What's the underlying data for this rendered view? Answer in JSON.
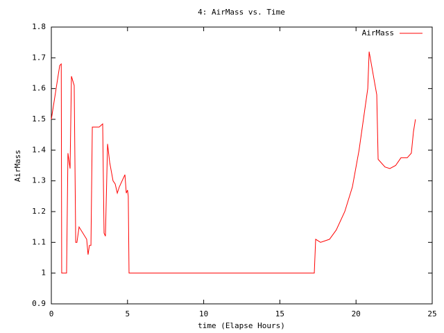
{
  "chart_data": {
    "type": "line",
    "title": "4: AirMass vs. Time",
    "xlabel": "time (Elapse Hours)",
    "ylabel": "AirMass",
    "x": [
      0,
      0.55,
      0.65,
      0.68,
      1.0,
      1.09,
      1.23,
      1.32,
      1.5,
      1.6,
      1.68,
      1.82,
      2.32,
      2.41,
      2.5,
      2.6,
      2.69,
      3.14,
      3.37,
      3.46,
      3.55,
      3.69,
      3.83,
      4.05,
      4.19,
      4.33,
      4.46,
      4.83,
      4.92,
      5.0,
      5.05,
      5.1,
      17.26,
      17.35,
      17.67,
      18.26,
      18.7,
      19.26,
      19.76,
      20.2,
      20.77,
      20.86,
      21.36,
      21.45,
      21.9,
      22.22,
      22.6,
      22.95,
      23.36,
      23.63,
      23.77,
      23.9
    ],
    "series": [
      {
        "name": "AirMass",
        "color": "#ff0000",
        "values": [
          1.5,
          1.675,
          1.68,
          1.0,
          1.0,
          1.39,
          1.34,
          1.64,
          1.61,
          1.1,
          1.1,
          1.15,
          1.11,
          1.06,
          1.09,
          1.09,
          1.475,
          1.475,
          1.485,
          1.13,
          1.12,
          1.42,
          1.36,
          1.3,
          1.29,
          1.26,
          1.28,
          1.32,
          1.26,
          1.27,
          1.25,
          1.0,
          1.0,
          1.11,
          1.1,
          1.11,
          1.14,
          1.2,
          1.28,
          1.4,
          1.6,
          1.72,
          1.58,
          1.37,
          1.345,
          1.34,
          1.35,
          1.375,
          1.375,
          1.39,
          1.46,
          1.5
        ]
      }
    ],
    "xlim": [
      0,
      25
    ],
    "xticks": [
      0,
      5,
      10,
      15,
      20,
      25
    ],
    "ylim": [
      0.9,
      1.8
    ],
    "yticks": [
      0.9,
      1,
      1.1,
      1.2,
      1.3,
      1.4,
      1.5,
      1.6,
      1.7,
      1.8
    ],
    "legend": "top-right"
  }
}
